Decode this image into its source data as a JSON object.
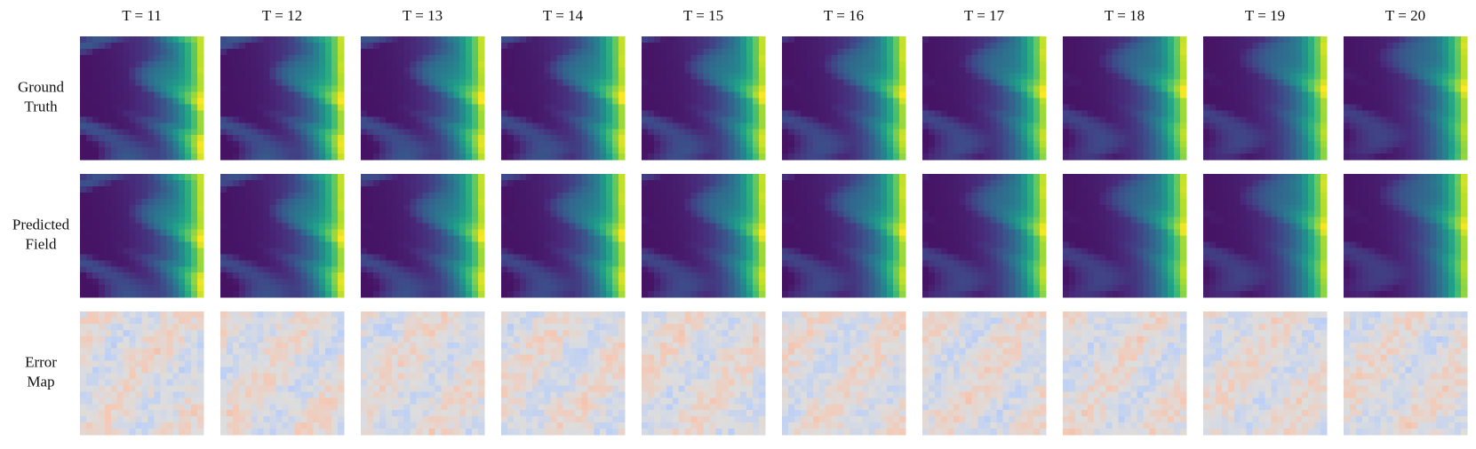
{
  "column_titles": [
    "T = 11",
    "T = 12",
    "T = 13",
    "T = 14",
    "T = 15",
    "T = 16",
    "T = 17",
    "T = 18",
    "T = 19",
    "T = 20"
  ],
  "row_labels": [
    [
      "Ground",
      "Truth"
    ],
    [
      "Predicted",
      "Field"
    ],
    [
      "Error",
      "Map"
    ]
  ]
}
